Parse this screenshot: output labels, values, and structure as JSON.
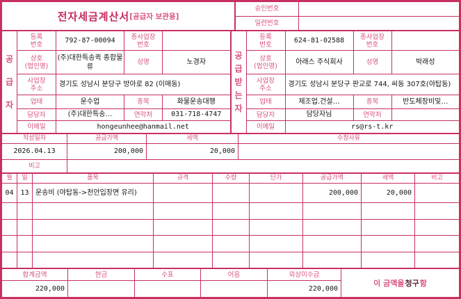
{
  "colors": {
    "border": "#c7305f",
    "label_pink": "#d9517c",
    "title_pink": "#c42a5b",
    "value_black": "#141414"
  },
  "header": {
    "title": "전자세금계산서",
    "subtitle": "[공급자 보관용]",
    "approval_no_label": "승인번호",
    "approval_no": "",
    "serial_no_label": "일련번호",
    "serial_no": ""
  },
  "supplier": {
    "band_label": "공급자",
    "reg_no_label": "등록\n번호",
    "reg_no": "792-87-00094",
    "branch_no_label": "종사업장\n번호",
    "branch_no": "",
    "company_label": "상호\n(법인명)",
    "company": "(주)대한특송퀵 종합물류",
    "ceo_label": "성명",
    "ceo": "노경자",
    "address_label": "사업장\n주소",
    "address": "경기도 성남시 분당구 방아로 82 (이매동)",
    "biz_type_label": "업태",
    "biz_type": "운수업",
    "biz_item_label": "종목",
    "biz_item": "화물운송대행",
    "manager_label": "담당자",
    "manager": "(주)대한특송…",
    "phone_label": "연락처",
    "phone": "031-718-4747",
    "email_label": "이메일",
    "email": "hongeunhee@hanmail.net"
  },
  "buyer": {
    "band_label": "공급받는자",
    "reg_no_label": "등록\n번호",
    "reg_no": "624-81-02588",
    "branch_no_label": "종사업장\n번호",
    "branch_no": "",
    "company_label": "상호\n(법인명)",
    "company": "아래스 주식회사",
    "ceo_label": "성명",
    "ceo": "박래성",
    "address_label": "사업장\n주소",
    "address": "경기도 성남시 분당구 판교로 744, 씨동 307호(야탑동)",
    "biz_type_label": "업태",
    "biz_type": "제조업.건설…",
    "biz_item_label": "종목",
    "biz_item": "반도체장비및…",
    "manager_label": "담당자",
    "manager": "담당자님",
    "phone_label": "연락처",
    "phone": "",
    "email_label": "이메일",
    "email": "rs@rs-t.kr"
  },
  "summary": {
    "date_label": "작성일자",
    "date": "2026.04.13",
    "supply_label": "공급가액",
    "supply_amount": "200,000",
    "tax_label": "세액",
    "tax_amount": "20,000",
    "revision_label": "수정사유",
    "revision": "",
    "note_label": "비고",
    "note": ""
  },
  "items": {
    "headers": [
      "월",
      "일",
      "품목",
      "규격",
      "수량",
      "단가",
      "공급가액",
      "세액",
      "비고"
    ],
    "rows": [
      {
        "month": "04",
        "day": "13",
        "name": "운송비 (야탑동->천안입장면 유리)",
        "spec": "",
        "qty": "",
        "unit_price": "",
        "supply": "200,000",
        "tax": "20,000",
        "note": ""
      }
    ]
  },
  "totals": {
    "total_label": "합계금액",
    "total": "220,000",
    "cash_label": "현금",
    "cash": "",
    "check_label": "수표",
    "check": "",
    "bill_label": "어음",
    "bill": "",
    "receivable_label": "외상미수금",
    "receivable": "220,000",
    "claim_prefix": "이 금액을 ",
    "claim_word": "청구",
    "claim_suffix": "함"
  }
}
